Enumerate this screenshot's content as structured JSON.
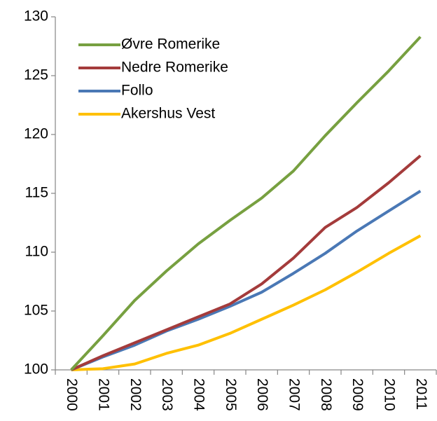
{
  "chart_data": {
    "type": "line",
    "categories": [
      "2000",
      "2001",
      "2002",
      "2003",
      "2004",
      "2005",
      "2006",
      "2007",
      "2008",
      "2009",
      "2010",
      "2011"
    ],
    "series": [
      {
        "name": "Øvre Romerike",
        "color": "#77a040",
        "values": [
          100,
          102.9,
          105.9,
          108.4,
          110.7,
          112.7,
          114.6,
          116.9,
          119.9,
          122.7,
          125.4,
          128.3
        ]
      },
      {
        "name": "Nedre Romerike",
        "color": "#a43b3b",
        "values": [
          100,
          101.2,
          102.3,
          103.4,
          104.5,
          105.6,
          107.3,
          109.5,
          112.1,
          113.8,
          115.9,
          118.2
        ]
      },
      {
        "name": "Follo",
        "color": "#4a78b5",
        "values": [
          100,
          101.1,
          102.1,
          103.3,
          104.3,
          105.4,
          106.6,
          108.2,
          109.9,
          111.8,
          113.5,
          115.2
        ]
      },
      {
        "name": "Akershus Vest",
        "color": "#ffc000",
        "values": [
          100,
          100.1,
          100.5,
          101.4,
          102.1,
          103.1,
          104.3,
          105.5,
          106.8,
          108.3,
          109.9,
          111.4
        ]
      }
    ],
    "ylim": [
      100,
      130
    ],
    "yticks": [
      100,
      105,
      110,
      115,
      120,
      125,
      130
    ],
    "legend": "top-left"
  }
}
